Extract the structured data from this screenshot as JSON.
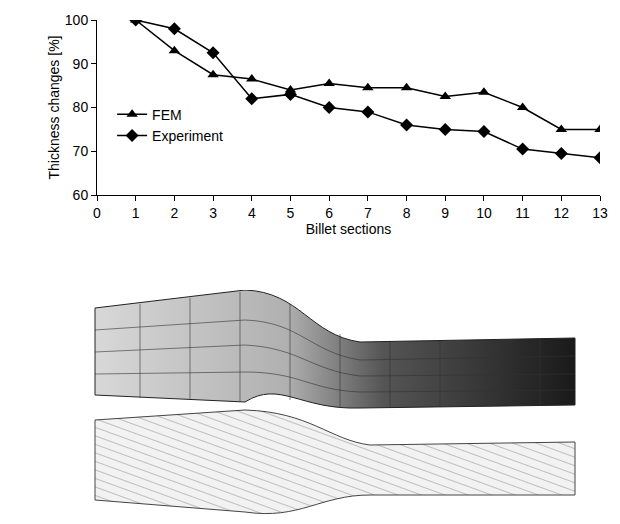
{
  "chart_data": {
    "type": "line",
    "x_label": "Billet sections",
    "y_label": "Thickness changes [%]",
    "x": [
      1,
      2,
      3,
      4,
      5,
      6,
      7,
      8,
      9,
      10,
      11,
      12,
      13
    ],
    "series": [
      {
        "name": "FEM",
        "color": "#000000",
        "marker": "triangle-up",
        "values": [
          100,
          93,
          87.5,
          86.5,
          84,
          85.5,
          84.5,
          84.5,
          82.5,
          83.5,
          80,
          75,
          75
        ]
      },
      {
        "name": "Experiment",
        "color": "#000000",
        "marker": "diamond",
        "values": [
          100,
          98,
          92.5,
          82,
          83,
          80,
          79,
          76,
          75,
          74.5,
          70.5,
          69.5,
          68.5
        ]
      }
    ],
    "xlim": [
      0,
      13
    ],
    "xticks": [
      0,
      1,
      2,
      3,
      4,
      5,
      6,
      7,
      8,
      9,
      10,
      11,
      12,
      13
    ],
    "ylim": [
      60,
      100
    ],
    "yticks": [
      60,
      70,
      80,
      90,
      100
    ],
    "grid": false,
    "legend": "left"
  }
}
